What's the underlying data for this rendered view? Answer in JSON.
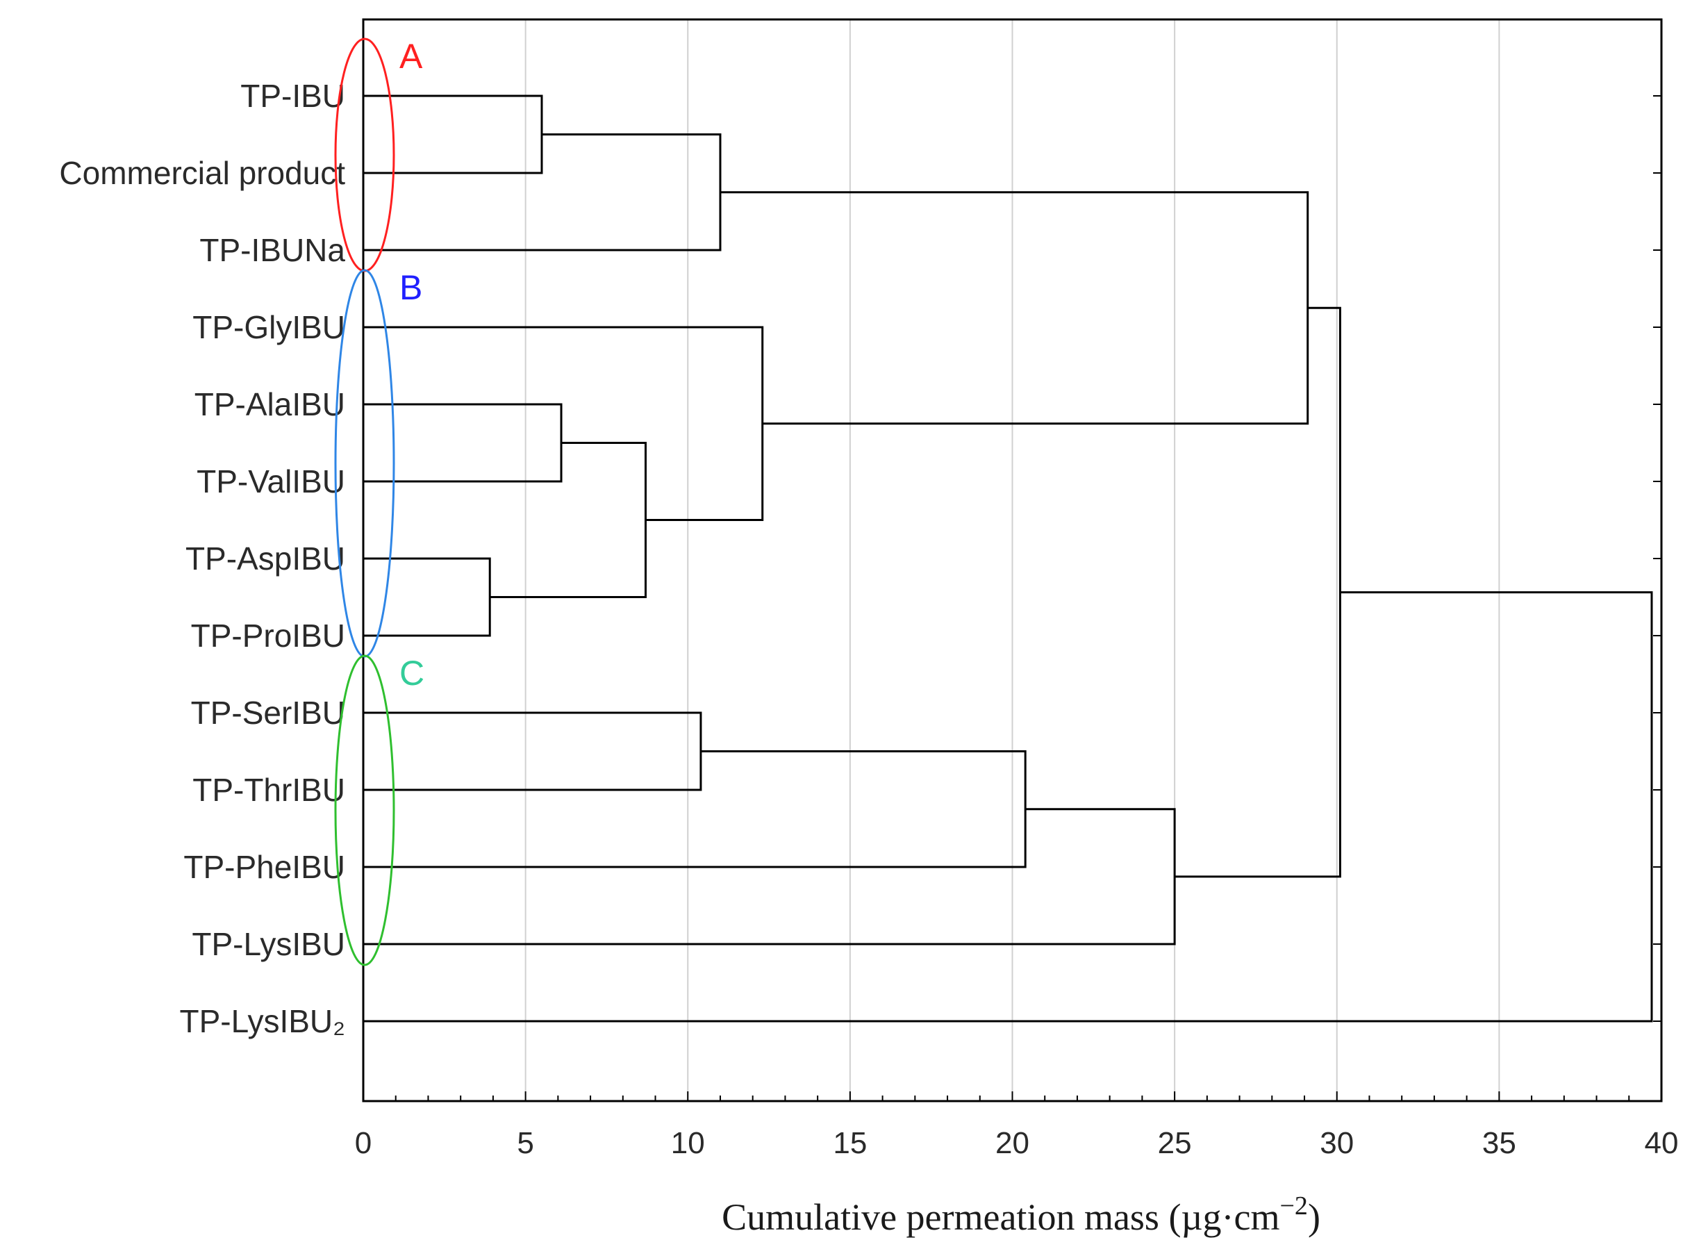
{
  "chart_data": {
    "type": "dendrogram",
    "xlabel": "Cumulative permeation mass (µg·cm",
    "xlabel_exponent": "−2",
    "xlabel_close": ")",
    "xlim": [
      0,
      40
    ],
    "xticks": [
      0,
      5,
      10,
      15,
      20,
      25,
      30,
      35,
      40
    ],
    "grid": true,
    "leaves": [
      "TP-IBU",
      "Commercial product",
      "TP-IBUNa",
      "TP-GlyIBU",
      "TP-AlaIBU",
      "TP-ValIBU",
      "TP-AspIBU",
      "TP-ProIBU",
      "TP-SerIBU",
      "TP-ThrIBU",
      "TP-PheIBU",
      "TP-LysIBU",
      "TP-LysIBU₂"
    ],
    "merges": [
      {
        "id": "m1",
        "left": 0,
        "right": 1,
        "height": 5.5
      },
      {
        "id": "m2",
        "left": "m1",
        "right": 2,
        "height": 11.0
      },
      {
        "id": "m3",
        "left": 6,
        "right": 7,
        "height": 3.9
      },
      {
        "id": "m4",
        "left": 4,
        "right": 5,
        "height": 6.1
      },
      {
        "id": "m5",
        "left": "m4",
        "right": "m3",
        "height": 8.7
      },
      {
        "id": "m6",
        "left": 3,
        "right": "m5",
        "height": 12.3
      },
      {
        "id": "m7",
        "left": "m2",
        "right": "m6",
        "height": 29.1
      },
      {
        "id": "m8",
        "left": 8,
        "right": 9,
        "height": 10.4
      },
      {
        "id": "m9",
        "left": "m8",
        "right": 10,
        "height": 20.4
      },
      {
        "id": "m10",
        "left": "m9",
        "right": 11,
        "height": 25.0
      },
      {
        "id": "m11",
        "left": "m7",
        "right": "m10",
        "height": 30.1
      },
      {
        "id": "m12",
        "left": "m11",
        "right": 12,
        "height": 39.7
      }
    ],
    "clusters": [
      {
        "label": "A",
        "members": [
          0,
          2
        ],
        "color": "#ff2020"
      },
      {
        "label": "B",
        "members": [
          3,
          7
        ],
        "color": "#2f86e6"
      },
      {
        "label": "C",
        "members": [
          8,
          11
        ],
        "color": "#2fbf2f"
      }
    ],
    "colors": {
      "line": "#000000",
      "grid": "#d0d0d0",
      "text": "#2a2a2a",
      "cluster_b_text": "#2020ff",
      "cluster_c_text": "#33cc99"
    }
  }
}
